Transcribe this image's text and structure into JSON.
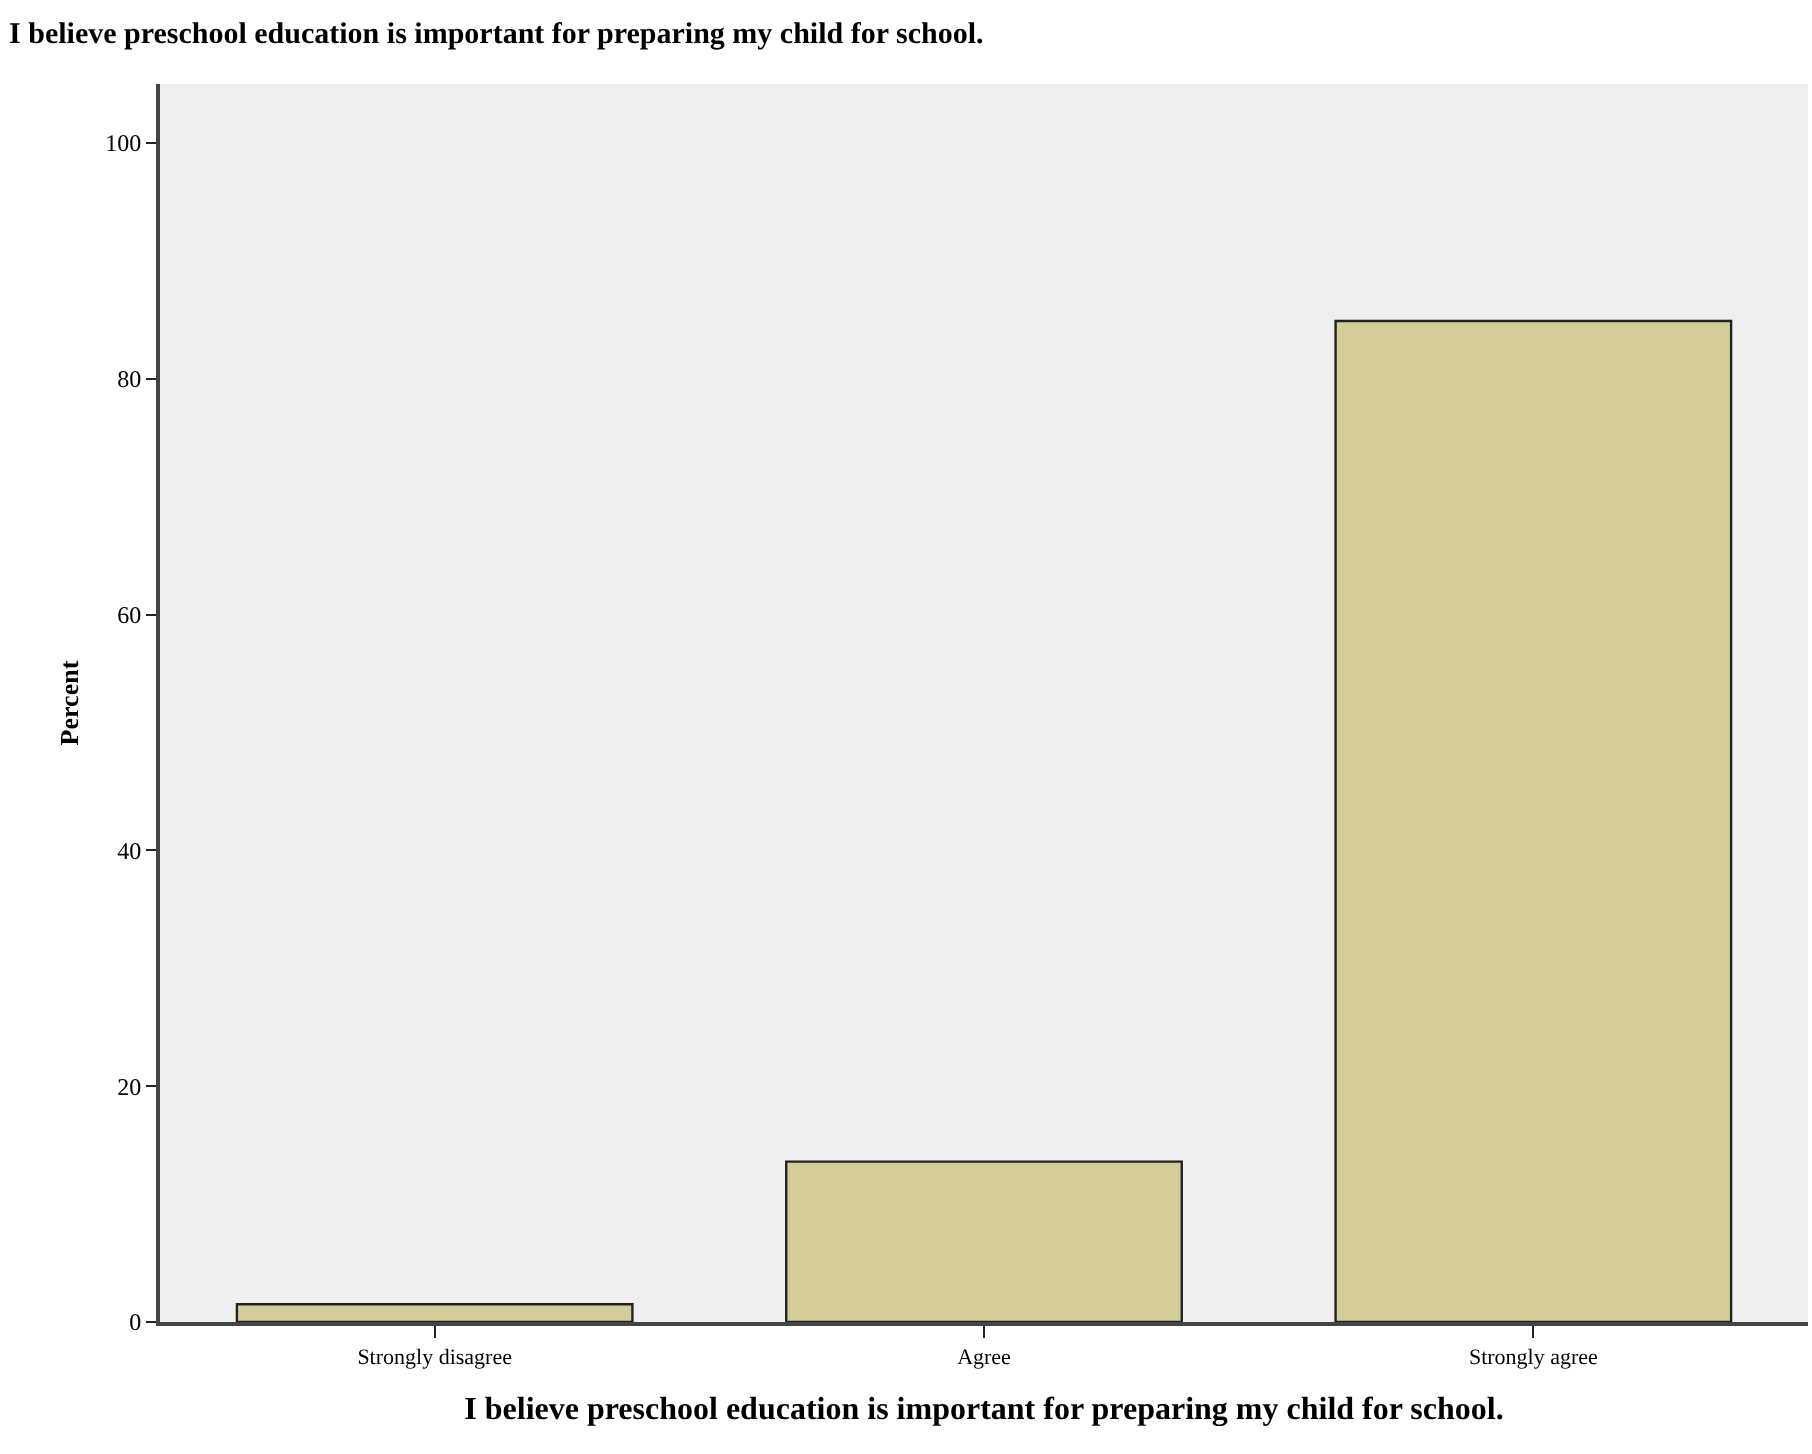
{
  "chart_data": {
    "type": "bar",
    "title": "I believe preschool education is important for preparing my child for school.",
    "xlabel": "I believe preschool education is important for preparing my child for school.",
    "ylabel": "Percent",
    "categories": [
      "Strongly disagree",
      "Agree",
      "Strongly agree"
    ],
    "values": [
      1.5,
      13.6,
      84.9
    ],
    "color": "#d3ce98",
    "ylim": [
      0,
      105
    ],
    "yticks": [
      0,
      20,
      40,
      60,
      80,
      100
    ],
    "grid": false
  }
}
